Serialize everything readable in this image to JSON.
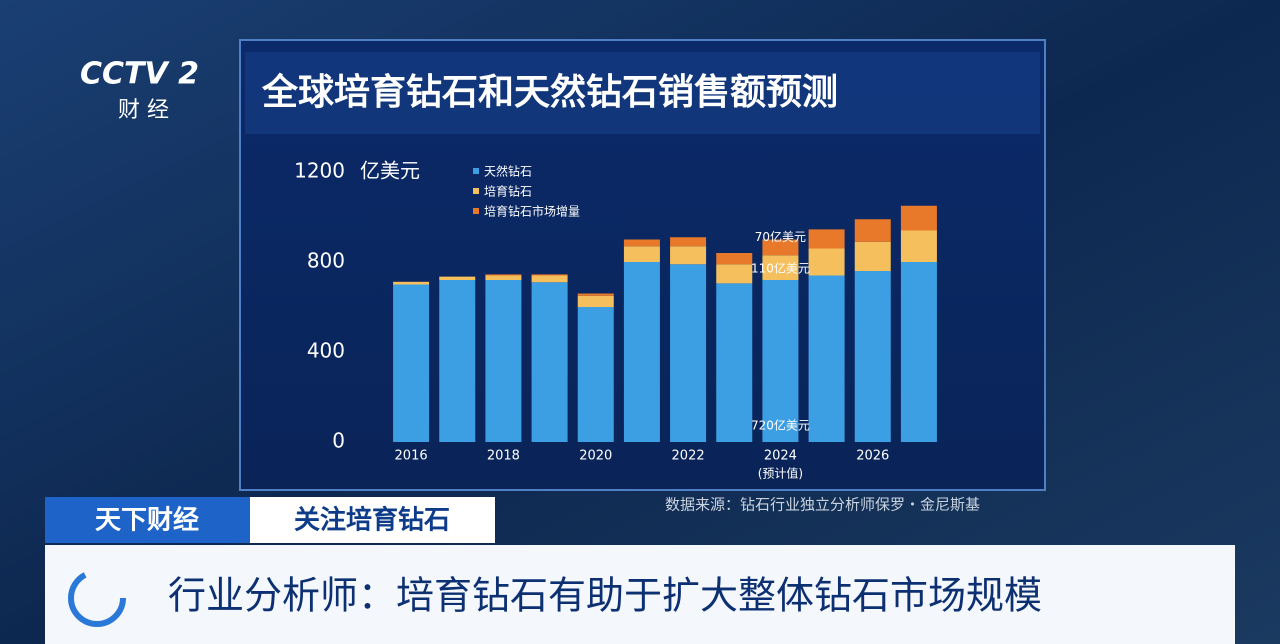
{
  "chart_data": {
    "type": "stacked-bar",
    "title": "全球培育钻石和天然钻石销售额预测",
    "y_unit": "亿美元",
    "categories": [
      "2016",
      null,
      "2018",
      null,
      "2020",
      null,
      "2022",
      null,
      "2024",
      null,
      "2026",
      null
    ],
    "series": [
      {
        "name": "天然钻石",
        "color": "#3d9fe3",
        "values": [
          700,
          720,
          720,
          710,
          600,
          800,
          790,
          705,
          720,
          740,
          760,
          800
        ]
      },
      {
        "name": "培育钻石",
        "color": "#f4bf5c",
        "values": [
          12,
          15,
          20,
          30,
          50,
          70,
          80,
          85,
          110,
          120,
          130,
          140
        ]
      },
      {
        "name": "培育钻石市场增量",
        "color": "#e8792b",
        "values": [
          0,
          0,
          5,
          5,
          10,
          30,
          40,
          50,
          70,
          85,
          100,
          110
        ]
      }
    ],
    "annotations": [
      "70亿美元",
      "110亿美元",
      "720亿美元",
      "(预计值)"
    ],
    "ylim": [
      0,
      1200
    ],
    "yticks": [
      0,
      400,
      800,
      1200
    ],
    "source": "数据来源：钻石行业独立分析师保罗・金尼斯基"
  },
  "broadcast": {
    "logo": "CCTV 2",
    "channel": "财 经",
    "program": "天下财经",
    "topic": "关注培育钻石",
    "headline": "行业分析师：培育钻石有助于扩大整体钻石市场规模"
  }
}
